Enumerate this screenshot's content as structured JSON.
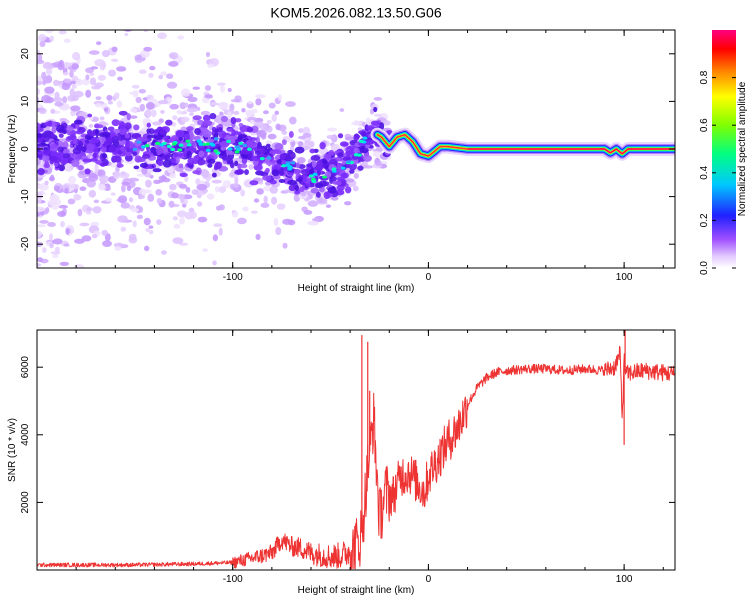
{
  "title": "KOM5.2026.082.13.50.G06",
  "colors": {
    "snr_line": "#ee3333",
    "axis": "#000000"
  },
  "chart_data": [
    {
      "type": "heatmap",
      "name": "spectrogram",
      "title": "KOM5.2026.082.13.50.G06",
      "xlabel": "Height of straight line (km)",
      "ylabel": "Frequency (Hz)",
      "xlim": [
        -200,
        126
      ],
      "ylim": [
        -25,
        25
      ],
      "xticks": [
        -100,
        0,
        100
      ],
      "yticks": [
        -20,
        -10,
        0,
        10,
        20
      ],
      "ridge": {
        "x": [
          -195,
          -175,
          -150,
          -125,
          -110,
          -95,
          -85,
          -75,
          -65,
          -55,
          -45,
          -38,
          -32,
          -28,
          -24,
          -20,
          -16,
          -12,
          -8,
          -4,
          0,
          3,
          6,
          10,
          20,
          60,
          90,
          93,
          96,
          99,
          102,
          126
        ],
        "frequency": [
          0.5,
          0.8,
          1.0,
          0.5,
          1.0,
          0.5,
          -1.0,
          -3.0,
          -5.0,
          -6.0,
          -4.0,
          -1.5,
          1.5,
          3.5,
          2.5,
          0.5,
          2.5,
          3.0,
          1.5,
          -1.0,
          -1.5,
          -0.5,
          0.5,
          0.5,
          0.0,
          0.0,
          0.0,
          -0.8,
          0.0,
          -1.0,
          0.0,
          0.0
        ]
      },
      "colorbar": {
        "label": "Normalized spectral amplitude",
        "range": [
          0.0,
          1.0
        ],
        "ticks": [
          "0.0",
          "0.2",
          "0.4",
          "0.6",
          "0.8"
        ],
        "tick_values": [
          0.0,
          0.2,
          0.4,
          0.6,
          0.8
        ]
      }
    },
    {
      "type": "line",
      "name": "snr",
      "xlabel": "Height of straight line (km)",
      "ylabel": "SNR (10 * v/v)",
      "xlim": [
        -200,
        126
      ],
      "ylim": [
        0,
        7100
      ],
      "xticks": [
        -100,
        0,
        100
      ],
      "yticks": [
        2000,
        4000,
        6000
      ],
      "series": [
        {
          "name": "SNR",
          "x": [
            -200,
            -150,
            -120,
            -100,
            -90,
            -80,
            -75,
            -70,
            -65,
            -60,
            -55,
            -50,
            -45,
            -40,
            -37,
            -34,
            -31,
            -28,
            -25,
            -22,
            -18,
            -14,
            -10,
            -6,
            -2,
            0,
            5,
            10,
            15,
            20,
            25,
            30,
            35,
            40,
            50,
            60,
            70,
            80,
            90,
            95,
            98,
            99,
            100,
            101,
            105,
            110,
            126
          ],
          "y": [
            150,
            150,
            180,
            220,
            350,
            500,
            900,
            700,
            650,
            500,
            450,
            400,
            420,
            550,
            700,
            1100,
            3000,
            4500,
            1500,
            2300,
            2200,
            2800,
            2900,
            2600,
            2300,
            2800,
            3300,
            3800,
            4200,
            4900,
            5400,
            5700,
            5850,
            5900,
            5950,
            5950,
            5900,
            5950,
            5900,
            6000,
            6400,
            4500,
            6200,
            5800,
            5850,
            5900,
            5800
          ],
          "spikes": [
            {
              "x": -34,
              "y": 6950
            },
            {
              "x": -31,
              "y": 6750
            },
            {
              "x": -30,
              "y": 5300
            },
            {
              "x": 100,
              "y": 3700
            },
            {
              "x": 100.5,
              "y": 7100
            }
          ]
        }
      ]
    }
  ]
}
